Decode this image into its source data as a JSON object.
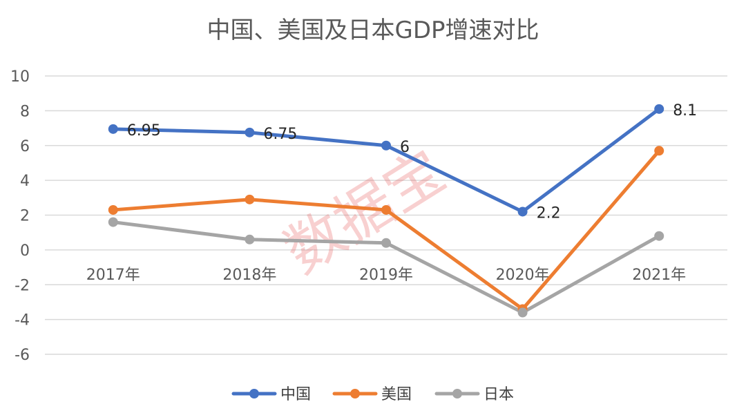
{
  "title": "中国、美国及日本GDP增速对比",
  "watermark": "数据宝",
  "chart_data": {
    "type": "line",
    "title": "中国、美国及日本GDP增速对比",
    "xlabel": "",
    "ylabel": "",
    "categories": [
      "2017年",
      "2018年",
      "2019年",
      "2020年",
      "2021年"
    ],
    "ylim": [
      -6,
      10
    ],
    "yticks": [
      10,
      8,
      6,
      4,
      2,
      0,
      -2,
      -4,
      -6
    ],
    "grid": true,
    "legend_position": "bottom",
    "series": [
      {
        "name": "中国",
        "color": "#4472c4",
        "values": [
          6.95,
          6.75,
          6,
          2.2,
          8.1
        ],
        "data_labels": [
          "6.95",
          "6.75",
          "6",
          "2.2",
          "8.1"
        ]
      },
      {
        "name": "美国",
        "color": "#ed7d31",
        "values": [
          2.3,
          2.9,
          2.3,
          -3.4,
          5.7
        ]
      },
      {
        "name": "日本",
        "color": "#a5a5a5",
        "values": [
          1.6,
          0.6,
          0.4,
          -3.6,
          0.8
        ]
      }
    ]
  }
}
